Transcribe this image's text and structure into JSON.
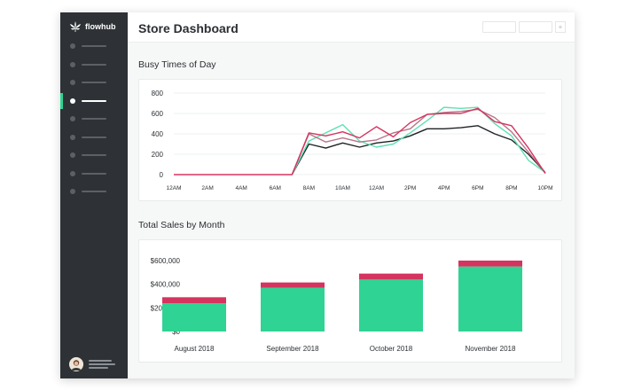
{
  "app": {
    "brand_name": "flowhub"
  },
  "header": {
    "title": "Store Dashboard"
  },
  "sidebar": {
    "item_count": 9,
    "active_index": 3
  },
  "sections": {
    "busy_title": "Busy Times of Day",
    "sales_title": "Total Sales by Month"
  },
  "colors": {
    "sidebar": "#2e3236",
    "green": "#2fd393",
    "green_light": "#5fe0b4",
    "pink": "#d5345f",
    "dark_line": "#1f2326",
    "mauve": "#b9758a"
  },
  "chart_data": [
    {
      "type": "line",
      "title": "Busy Times of Day",
      "x": [
        0,
        1,
        2,
        3,
        4,
        5,
        6,
        7,
        8,
        9,
        10,
        11,
        12,
        13,
        14,
        15,
        16,
        17,
        18,
        19,
        20,
        21,
        22
      ],
      "xtick_labels": [
        "12AM",
        "2AM",
        "4AM",
        "6AM",
        "8AM",
        "10AM",
        "12AM",
        "2PM",
        "4PM",
        "6PM",
        "8PM",
        "10PM"
      ],
      "xticks": [
        0,
        2,
        4,
        6,
        8,
        10,
        12,
        14,
        16,
        18,
        20,
        22
      ],
      "yticks": [
        0,
        200,
        400,
        600,
        800
      ],
      "ylim": [
        0,
        800
      ],
      "series": [
        {
          "name": "dark",
          "color": "#1f2326",
          "values": [
            null,
            null,
            null,
            null,
            null,
            null,
            null,
            0,
            300,
            260,
            310,
            270,
            310,
            330,
            380,
            450,
            450,
            460,
            480,
            400,
            340,
            200,
            20
          ]
        },
        {
          "name": "green",
          "color": "#5fe0b4",
          "values": [
            null,
            null,
            null,
            null,
            null,
            null,
            null,
            0,
            330,
            410,
            490,
            330,
            270,
            300,
            410,
            530,
            660,
            650,
            660,
            500,
            380,
            140,
            20
          ]
        },
        {
          "name": "mauve",
          "color": "#b9758a",
          "values": [
            null,
            null,
            null,
            null,
            null,
            null,
            null,
            0,
            400,
            320,
            360,
            320,
            340,
            410,
            450,
            590,
            610,
            620,
            640,
            560,
            420,
            220,
            20
          ]
        },
        {
          "name": "pink",
          "color": "#d5345f",
          "values": [
            0,
            0,
            0,
            0,
            0,
            0,
            0,
            0,
            410,
            380,
            420,
            360,
            470,
            370,
            510,
            590,
            600,
            600,
            650,
            520,
            480,
            260,
            10
          ]
        }
      ]
    },
    {
      "type": "bar",
      "stacked": true,
      "title": "Total Sales by Month",
      "categories": [
        "August 2018",
        "September 2018",
        "October 2018",
        "November 2018"
      ],
      "series": [
        {
          "name": "base",
          "color": "#2fd393",
          "values": [
            240000,
            370000,
            440000,
            550000
          ]
        },
        {
          "name": "top",
          "color": "#d5345f",
          "values": [
            50000,
            45000,
            50000,
            50000
          ]
        }
      ],
      "ytick_labels": [
        "$0",
        "$200,000",
        "$400,000",
        "$600,000"
      ],
      "yticks": [
        0,
        200000,
        400000,
        600000
      ],
      "ylim": [
        0,
        600000
      ]
    }
  ]
}
